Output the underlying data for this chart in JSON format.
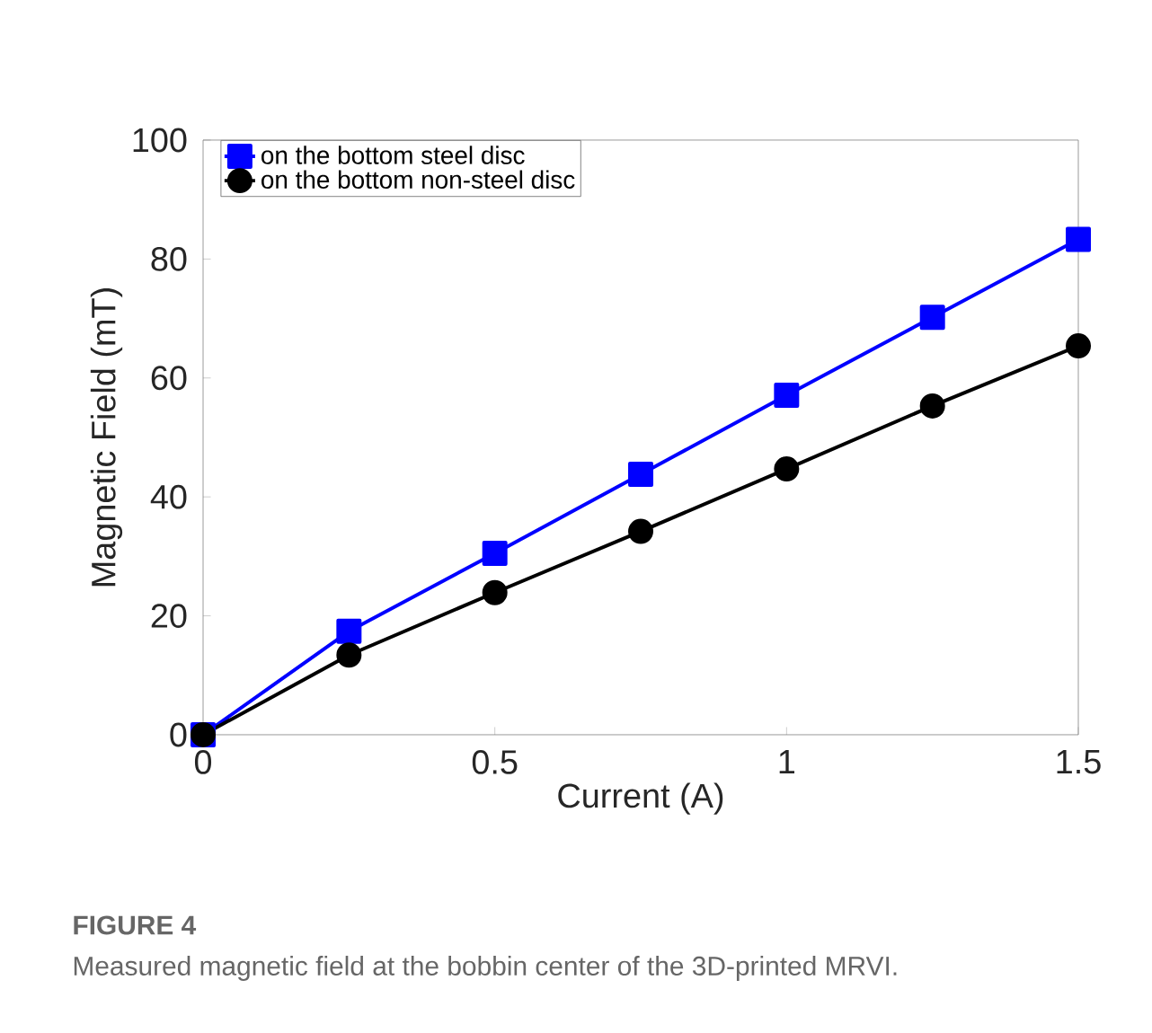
{
  "chart_data": {
    "type": "line",
    "xlabel": "Current (A)",
    "ylabel": "Magnetic Field (mT)",
    "x": [
      0,
      0.25,
      0.5,
      0.75,
      1,
      1.25,
      1.5
    ],
    "series": [
      {
        "name": "on the bottom steel disc",
        "color": "#0000ff",
        "marker": "square",
        "values": [
          0,
          17.4,
          30.5,
          43.8,
          57.1,
          70.2,
          83.3
        ]
      },
      {
        "name": "on the bottom non-steel disc",
        "color": "#000000",
        "marker": "circle",
        "values": [
          0,
          13.4,
          23.9,
          34.2,
          44.7,
          55.3,
          65.4
        ]
      }
    ],
    "xlim": [
      0,
      1.5
    ],
    "xticks": [
      0,
      0.5,
      1,
      1.5
    ],
    "ylim": [
      0,
      100
    ],
    "yticks": [
      0,
      20,
      40,
      60,
      80,
      100
    ],
    "grid": false,
    "legend": "top left",
    "line_style": "solid",
    "annotations": [
      "FIGURE 4",
      "Measured magnetic field at the bobbin center of the 3D-printed MRVI."
    ]
  }
}
